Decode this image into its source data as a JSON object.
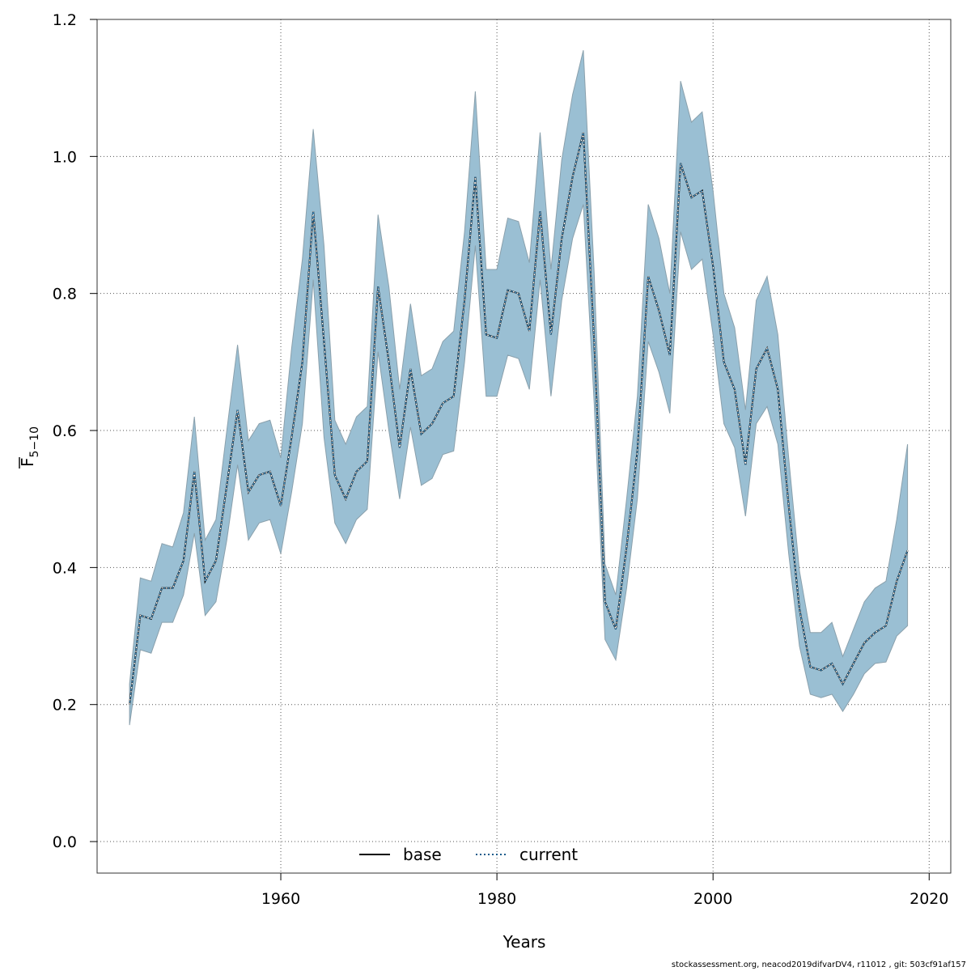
{
  "chart_data": {
    "type": "line",
    "title": "",
    "xlabel": "Years",
    "ylabel": "F5-10",
    "ylabel_main": "F",
    "ylabel_sub": "5−10",
    "xlim": [
      1943,
      2022
    ],
    "ylim": [
      -0.046,
      1.2
    ],
    "x_ticks": [
      1960,
      1980,
      2000,
      2020
    ],
    "y_ticks": [
      0.0,
      0.2,
      0.4,
      0.6,
      0.8,
      1.0,
      1.2
    ],
    "y_tick_labels": [
      "0.0",
      "0.2",
      "0.4",
      "0.6",
      "0.8",
      "1.0",
      "1.2"
    ],
    "grid": true,
    "legend_position": "bottom-center",
    "band_color": "#9ABFD3",
    "band_stroke": "#8aa0ac",
    "series": [
      {
        "name": "base",
        "style": "solid",
        "color": "#000000"
      },
      {
        "name": "current",
        "style": "dotted",
        "color": "#1a5a8a"
      }
    ],
    "x": [
      1946,
      1947,
      1948,
      1949,
      1950,
      1951,
      1952,
      1953,
      1954,
      1955,
      1956,
      1957,
      1958,
      1959,
      1960,
      1961,
      1962,
      1963,
      1964,
      1965,
      1966,
      1967,
      1968,
      1969,
      1970,
      1971,
      1972,
      1973,
      1974,
      1975,
      1976,
      1977,
      1978,
      1979,
      1980,
      1981,
      1982,
      1983,
      1984,
      1985,
      1986,
      1987,
      1988,
      1989,
      1990,
      1991,
      1992,
      1993,
      1994,
      1995,
      1996,
      1997,
      1998,
      1999,
      2000,
      2001,
      2002,
      2003,
      2004,
      2005,
      2006,
      2007,
      2008,
      2009,
      2010,
      2011,
      2012,
      2013,
      2014,
      2015,
      2016,
      2017,
      2018
    ],
    "estimate": [
      0.2,
      0.33,
      0.325,
      0.37,
      0.37,
      0.41,
      0.54,
      0.38,
      0.41,
      0.52,
      0.63,
      0.51,
      0.535,
      0.54,
      0.49,
      0.59,
      0.7,
      0.92,
      0.73,
      0.535,
      0.5,
      0.54,
      0.555,
      0.81,
      0.7,
      0.575,
      0.69,
      0.595,
      0.61,
      0.64,
      0.65,
      0.79,
      0.97,
      0.74,
      0.735,
      0.805,
      0.8,
      0.745,
      0.92,
      0.74,
      0.88,
      0.97,
      1.035,
      0.73,
      0.35,
      0.31,
      0.43,
      0.57,
      0.825,
      0.775,
      0.71,
      0.99,
      0.94,
      0.95,
      0.84,
      0.7,
      0.66,
      0.55,
      0.69,
      0.72,
      0.66,
      0.49,
      0.34,
      0.255,
      0.25,
      0.26,
      0.23,
      0.26,
      0.29,
      0.305,
      0.315,
      0.38,
      0.425
    ],
    "lower": [
      0.17,
      0.28,
      0.275,
      0.32,
      0.32,
      0.36,
      0.45,
      0.33,
      0.35,
      0.44,
      0.55,
      0.44,
      0.465,
      0.47,
      0.42,
      0.51,
      0.61,
      0.82,
      0.59,
      0.465,
      0.435,
      0.47,
      0.485,
      0.715,
      0.6,
      0.5,
      0.605,
      0.52,
      0.53,
      0.565,
      0.57,
      0.7,
      0.87,
      0.65,
      0.65,
      0.71,
      0.705,
      0.66,
      0.82,
      0.65,
      0.79,
      0.88,
      0.93,
      0.64,
      0.295,
      0.265,
      0.37,
      0.5,
      0.73,
      0.685,
      0.625,
      0.89,
      0.835,
      0.85,
      0.74,
      0.61,
      0.575,
      0.475,
      0.61,
      0.635,
      0.58,
      0.42,
      0.285,
      0.215,
      0.21,
      0.215,
      0.19,
      0.215,
      0.245,
      0.26,
      0.262,
      0.3,
      0.315
    ],
    "upper": [
      0.23,
      0.385,
      0.38,
      0.435,
      0.43,
      0.48,
      0.62,
      0.44,
      0.47,
      0.6,
      0.725,
      0.585,
      0.61,
      0.615,
      0.56,
      0.72,
      0.85,
      1.04,
      0.87,
      0.615,
      0.58,
      0.62,
      0.635,
      0.915,
      0.81,
      0.66,
      0.785,
      0.68,
      0.69,
      0.73,
      0.745,
      0.89,
      1.095,
      0.835,
      0.835,
      0.91,
      0.905,
      0.845,
      1.035,
      0.835,
      0.995,
      1.09,
      1.155,
      0.83,
      0.405,
      0.36,
      0.5,
      0.65,
      0.93,
      0.88,
      0.8,
      1.11,
      1.05,
      1.065,
      0.95,
      0.8,
      0.75,
      0.63,
      0.79,
      0.825,
      0.74,
      0.56,
      0.395,
      0.305,
      0.305,
      0.32,
      0.27,
      0.31,
      0.35,
      0.37,
      0.38,
      0.47,
      0.58
    ]
  },
  "footer": {
    "text": "stockassessment.org, neacod2019difvarDV4, r11012 , git: 503cf91af157"
  }
}
